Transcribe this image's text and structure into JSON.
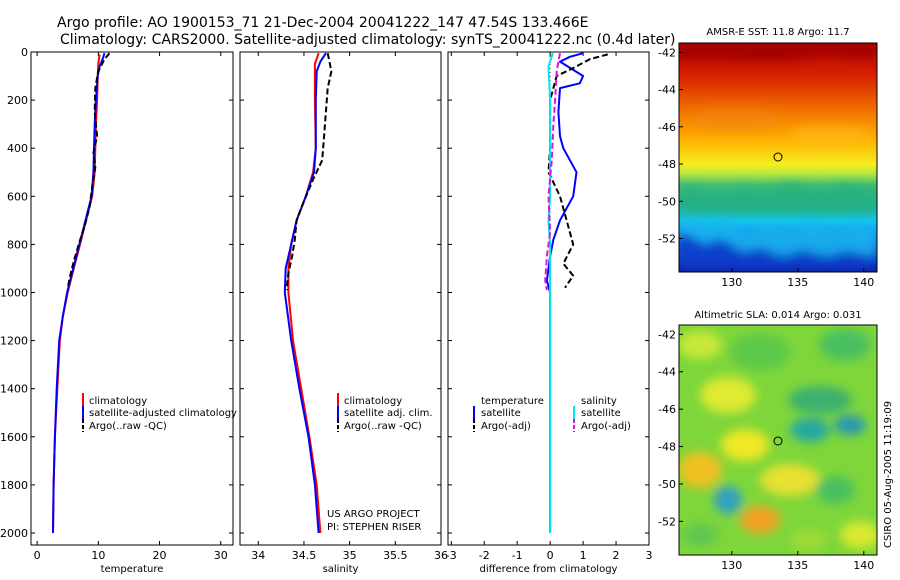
{
  "header": {
    "line1": "Argo profile: AO 1900153_71 21-Dec-2004 20041222_147 47.54S 133.466E",
    "line2": "Climatology: CARS2000. Satellite-adjusted climatology: synTS_20041222.nc (0.4d later)"
  },
  "side_label": "CSIRO 05-Aug-2005 11:19:09",
  "chart_data": [
    {
      "type": "line",
      "xlabel": "temperature",
      "ylabel": "",
      "xlim": [
        -1,
        32
      ],
      "ylim": [
        2050,
        0
      ],
      "xticks": [
        0,
        10,
        20,
        30
      ],
      "yticks": [
        0,
        200,
        400,
        600,
        800,
        1000,
        1200,
        1400,
        1600,
        1800,
        2000
      ],
      "legend": [
        "climatology",
        "satellite-adjusted climatology",
        "Argo(..raw -QC)"
      ],
      "series": [
        {
          "name": "climatology",
          "color": "#ff0000",
          "style": "solid",
          "points": [
            [
              10.2,
              10
            ],
            [
              10.0,
              50
            ],
            [
              9.9,
              100
            ],
            [
              9.8,
              200
            ],
            [
              9.6,
              300
            ],
            [
              9.5,
              400
            ],
            [
              9.4,
              500
            ],
            [
              9.0,
              600
            ],
            [
              8.0,
              700
            ],
            [
              7.0,
              800
            ],
            [
              6.0,
              900
            ],
            [
              5.0,
              1000
            ],
            [
              4.2,
              1100
            ],
            [
              3.7,
              1200
            ],
            [
              3.3,
              1400
            ],
            [
              2.9,
              1600
            ],
            [
              2.7,
              1800
            ],
            [
              2.6,
              2000
            ]
          ]
        },
        {
          "name": "satellite-adjusted climatology",
          "color": "#0000ff",
          "style": "solid",
          "points": [
            [
              11.0,
              5
            ],
            [
              10.7,
              30
            ],
            [
              10.2,
              60
            ],
            [
              9.9,
              100
            ],
            [
              9.6,
              200
            ],
            [
              9.4,
              300
            ],
            [
              9.3,
              400
            ],
            [
              9.2,
              500
            ],
            [
              8.9,
              600
            ],
            [
              7.9,
              700
            ],
            [
              6.9,
              800
            ],
            [
              5.9,
              900
            ],
            [
              4.9,
              1000
            ],
            [
              4.2,
              1100
            ],
            [
              3.6,
              1200
            ],
            [
              3.2,
              1400
            ],
            [
              2.9,
              1600
            ],
            [
              2.7,
              1800
            ],
            [
              2.6,
              2000
            ]
          ]
        },
        {
          "name": "Argo(..raw -QC)",
          "color": "#000000",
          "style": "dashed",
          "points": [
            [
              11.8,
              5
            ],
            [
              11.0,
              30
            ],
            [
              10.0,
              80
            ],
            [
              9.5,
              150
            ],
            [
              9.4,
              250
            ],
            [
              9.8,
              350
            ],
            [
              9.2,
              420
            ],
            [
              9.5,
              480
            ],
            [
              9.0,
              560
            ],
            [
              8.6,
              640
            ],
            [
              7.8,
              720
            ],
            [
              6.8,
              800
            ],
            [
              6.0,
              870
            ],
            [
              5.5,
              920
            ],
            [
              5.0,
              980
            ]
          ]
        }
      ]
    },
    {
      "type": "line",
      "xlabel": "salinity",
      "ylabel": "",
      "xlim": [
        33.8,
        36.0
      ],
      "ylim": [
        2050,
        0
      ],
      "xticks": [
        34,
        34.5,
        35,
        35.5,
        36
      ],
      "legend": [
        "climatology",
        "satellite adj. clim.",
        "Argo(..raw -QC)"
      ],
      "annotation": [
        "US ARGO PROJECT",
        "PI: STEPHEN RISER"
      ],
      "series": [
        {
          "name": "climatology",
          "color": "#ff0000",
          "style": "solid",
          "points": [
            [
              34.66,
              5
            ],
            [
              34.62,
              50
            ],
            [
              34.62,
              200
            ],
            [
              34.63,
              400
            ],
            [
              34.6,
              500
            ],
            [
              34.52,
              600
            ],
            [
              34.42,
              700
            ],
            [
              34.36,
              800
            ],
            [
              34.33,
              900
            ],
            [
              34.33,
              1000
            ],
            [
              34.38,
              1200
            ],
            [
              34.47,
              1400
            ],
            [
              34.56,
              1600
            ],
            [
              34.64,
              1800
            ],
            [
              34.68,
              2000
            ]
          ]
        },
        {
          "name": "satellite adj. clim.",
          "color": "#0000ff",
          "style": "solid",
          "points": [
            [
              34.74,
              5
            ],
            [
              34.68,
              40
            ],
            [
              34.64,
              80
            ],
            [
              34.63,
              200
            ],
            [
              34.63,
              400
            ],
            [
              34.61,
              500
            ],
            [
              34.52,
              600
            ],
            [
              34.42,
              700
            ],
            [
              34.36,
              800
            ],
            [
              34.3,
              900
            ],
            [
              34.29,
              1000
            ],
            [
              34.36,
              1200
            ],
            [
              34.45,
              1400
            ],
            [
              34.55,
              1600
            ],
            [
              34.62,
              1800
            ],
            [
              34.66,
              2000
            ]
          ]
        },
        {
          "name": "Argo(..raw -QC)",
          "color": "#000000",
          "style": "dashed",
          "points": [
            [
              34.76,
              5
            ],
            [
              34.8,
              80
            ],
            [
              34.76,
              150
            ],
            [
              34.74,
              250
            ],
            [
              34.72,
              350
            ],
            [
              34.7,
              450
            ],
            [
              34.6,
              530
            ],
            [
              34.5,
              620
            ],
            [
              34.42,
              700
            ],
            [
              34.4,
              780
            ],
            [
              34.37,
              850
            ],
            [
              34.33,
              920
            ],
            [
              34.31,
              990
            ]
          ]
        }
      ]
    },
    {
      "type": "line",
      "xlabel": "difference from climatology",
      "ylabel": "",
      "xlim": [
        -3.1,
        3.0
      ],
      "ylim": [
        2050,
        0
      ],
      "xticks": [
        -3,
        -2,
        -1,
        0,
        1,
        2,
        3
      ],
      "legend_left_title": "temperature",
      "legend_right_title": "salinity",
      "legend": [
        "satellite",
        "Argo(-adj)",
        "satellite",
        "Argo(-adj)"
      ],
      "series": [
        {
          "name": "satellite",
          "color": "#0000ff",
          "style": "solid",
          "points": [
            [
              1.0,
              5
            ],
            [
              0.6,
              20
            ],
            [
              0.3,
              40
            ],
            [
              1.0,
              100
            ],
            [
              0.9,
              130
            ],
            [
              0.3,
              150
            ],
            [
              0.25,
              250
            ],
            [
              0.3,
              350
            ],
            [
              0.4,
              400
            ],
            [
              0.6,
              450
            ],
            [
              0.8,
              500
            ],
            [
              0.7,
              600
            ],
            [
              0.3,
              700
            ],
            [
              0.1,
              780
            ],
            [
              0.0,
              850
            ],
            [
              -0.1,
              950
            ],
            [
              0.0,
              1000
            ],
            [
              0.0,
              1200
            ],
            [
              0.0,
              1400
            ],
            [
              0.0,
              1600
            ],
            [
              0.0,
              1800
            ],
            [
              0.0,
              2000
            ]
          ]
        },
        {
          "name": "Argo(-adj)",
          "color": "#000000",
          "style": "dashed",
          "points": [
            [
              1.75,
              10
            ],
            [
              1.2,
              30
            ],
            [
              0.8,
              60
            ],
            [
              0.2,
              100
            ],
            [
              0.0,
              200
            ],
            [
              0.0,
              300
            ],
            [
              0.0,
              400
            ],
            [
              -0.05,
              500
            ],
            [
              0.3,
              600
            ],
            [
              0.5,
              700
            ],
            [
              0.7,
              800
            ],
            [
              0.4,
              880
            ],
            [
              0.7,
              930
            ],
            [
              0.45,
              980
            ]
          ]
        },
        {
          "name": "satellite",
          "color": "#00e5ee",
          "style": "solid",
          "points": [
            [
              0.08,
              5
            ],
            [
              -0.05,
              60
            ],
            [
              0.0,
              200
            ],
            [
              0.0,
              400
            ],
            [
              0.0,
              600
            ],
            [
              -0.05,
              700
            ],
            [
              0.0,
              800
            ],
            [
              0.0,
              900
            ],
            [
              0.0,
              1000
            ],
            [
              0.0,
              1200
            ],
            [
              0.0,
              1400
            ],
            [
              0.0,
              1600
            ],
            [
              0.0,
              1800
            ],
            [
              0.0,
              2000
            ]
          ]
        },
        {
          "name": "Argo(-adj)",
          "color": "#e010e0",
          "style": "dashed",
          "points": [
            [
              0.3,
              5
            ],
            [
              0.2,
              80
            ],
            [
              0.15,
              200
            ],
            [
              0.1,
              300
            ],
            [
              0.05,
              450
            ],
            [
              -0.05,
              600
            ],
            [
              0.0,
              750
            ],
            [
              -0.1,
              850
            ],
            [
              -0.15,
              950
            ],
            [
              -0.1,
              990
            ]
          ]
        }
      ]
    },
    {
      "type": "heatmap",
      "title": "AMSR-E SST: 11.8 Argo: 11.7",
      "xlim": [
        126,
        141
      ],
      "ylim": [
        -53.8,
        -41.5
      ],
      "xticks": [
        130,
        135,
        140
      ],
      "yticks": [
        -42,
        -44,
        -46,
        -48,
        -50,
        -52
      ],
      "marker": [
        133.466,
        -47.54
      ]
    },
    {
      "type": "heatmap",
      "title": "Altimetric SLA: 0.014 Argo: 0.031",
      "xlim": [
        126,
        141
      ],
      "ylim": [
        -53.8,
        -41.5
      ],
      "xticks": [
        130,
        135,
        140
      ],
      "yticks": [
        -42,
        -44,
        -46,
        -48,
        -50,
        -52
      ],
      "marker": [
        133.466,
        -47.54
      ]
    }
  ]
}
